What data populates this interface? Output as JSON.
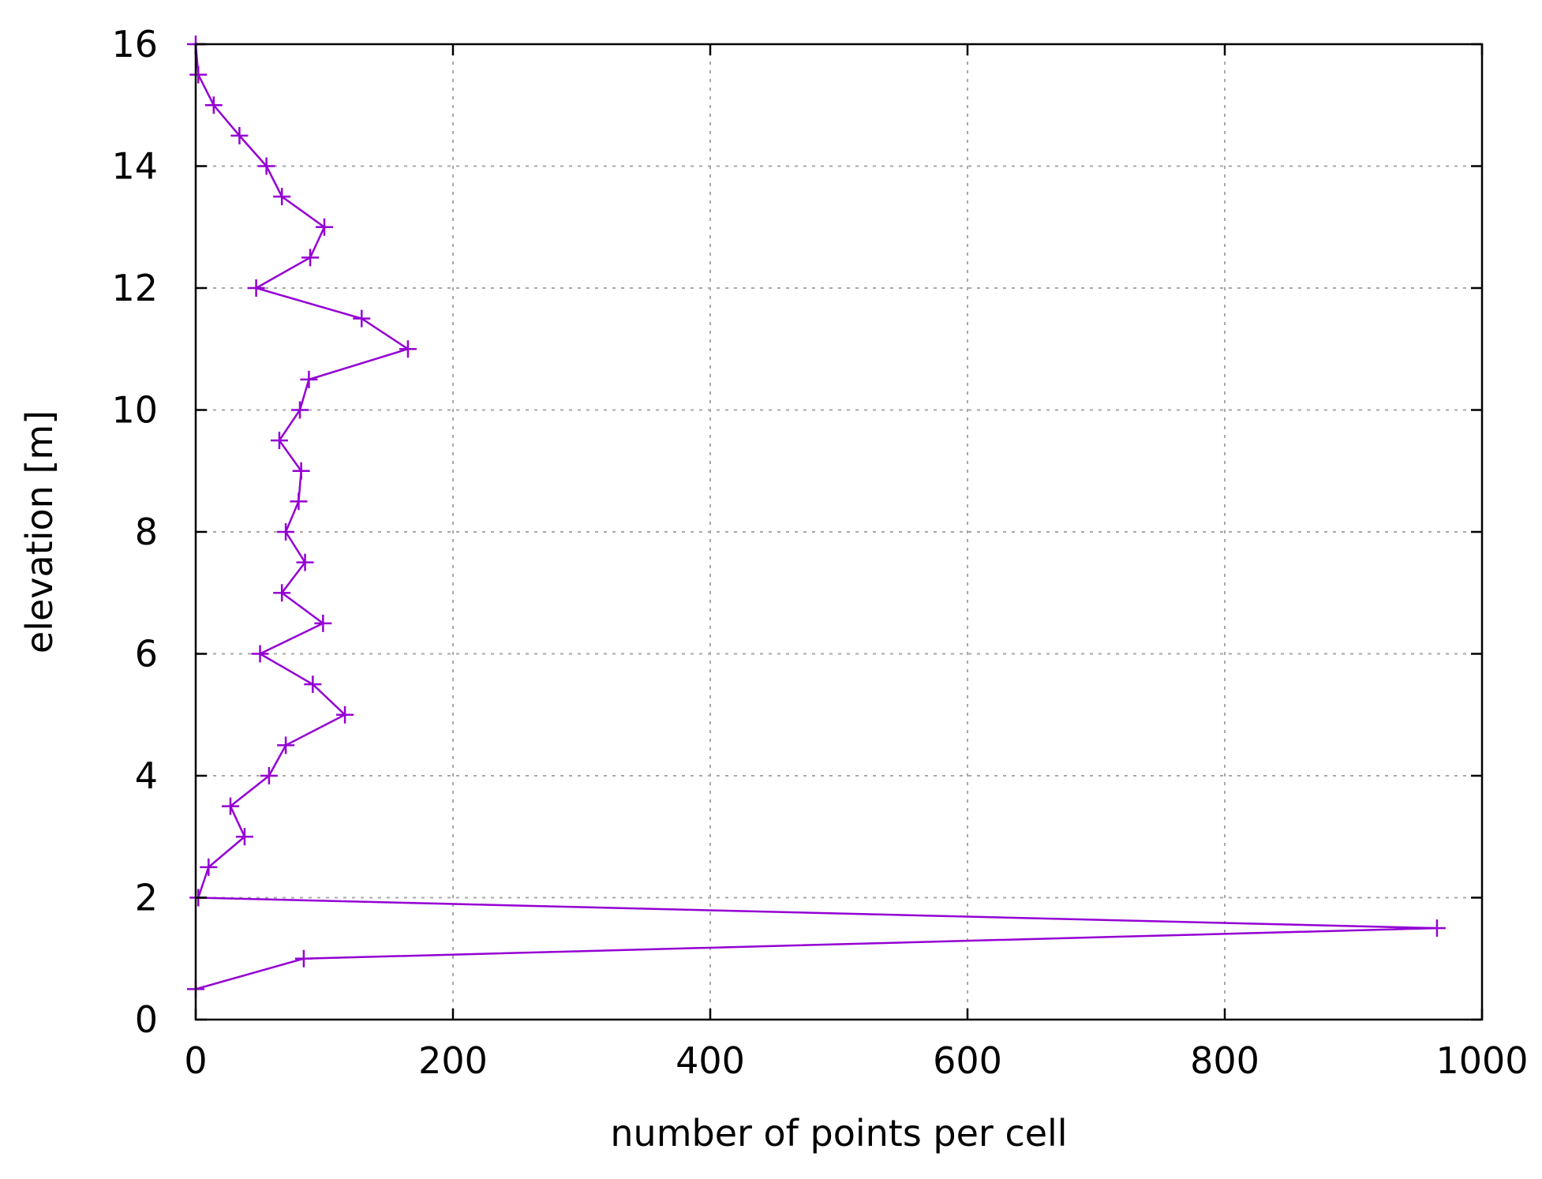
{
  "chart_data": {
    "type": "line",
    "title": "",
    "xlabel": "number of points per cell",
    "ylabel": "elevation [m]",
    "xlim": [
      0,
      1000
    ],
    "ylim": [
      0,
      16
    ],
    "x_ticks": [
      "0",
      "200",
      "400",
      "600",
      "800",
      "1000"
    ],
    "y_ticks": [
      "0",
      "2",
      "4",
      "6",
      "8",
      "10",
      "12",
      "14",
      "16"
    ],
    "grid": true,
    "legend": "none",
    "series": [
      {
        "color": "#9400d3",
        "marker": "plus",
        "points": [
          {
            "x": 0,
            "y": 0.5
          },
          {
            "x": 84,
            "y": 1.0
          },
          {
            "x": 965,
            "y": 1.5
          },
          {
            "x": 2,
            "y": 2.0
          },
          {
            "x": 10,
            "y": 2.5
          },
          {
            "x": 38,
            "y": 3.0
          },
          {
            "x": 27,
            "y": 3.5
          },
          {
            "x": 57,
            "y": 4.0
          },
          {
            "x": 70,
            "y": 4.5
          },
          {
            "x": 116,
            "y": 5.0
          },
          {
            "x": 91,
            "y": 5.5
          },
          {
            "x": 50,
            "y": 6.0
          },
          {
            "x": 99,
            "y": 6.5
          },
          {
            "x": 67,
            "y": 7.0
          },
          {
            "x": 85,
            "y": 7.5
          },
          {
            "x": 70,
            "y": 8.0
          },
          {
            "x": 80,
            "y": 8.5
          },
          {
            "x": 82,
            "y": 9.0
          },
          {
            "x": 65,
            "y": 9.5
          },
          {
            "x": 81,
            "y": 10.0
          },
          {
            "x": 88,
            "y": 10.5
          },
          {
            "x": 165,
            "y": 11.0
          },
          {
            "x": 129,
            "y": 11.5
          },
          {
            "x": 47,
            "y": 12.0
          },
          {
            "x": 89,
            "y": 12.5
          },
          {
            "x": 100,
            "y": 13.0
          },
          {
            "x": 67,
            "y": 13.5
          },
          {
            "x": 55,
            "y": 14.0
          },
          {
            "x": 34,
            "y": 14.5
          },
          {
            "x": 14,
            "y": 15.0
          },
          {
            "x": 2,
            "y": 15.5
          },
          {
            "x": 0,
            "y": 16.0
          }
        ]
      }
    ]
  }
}
